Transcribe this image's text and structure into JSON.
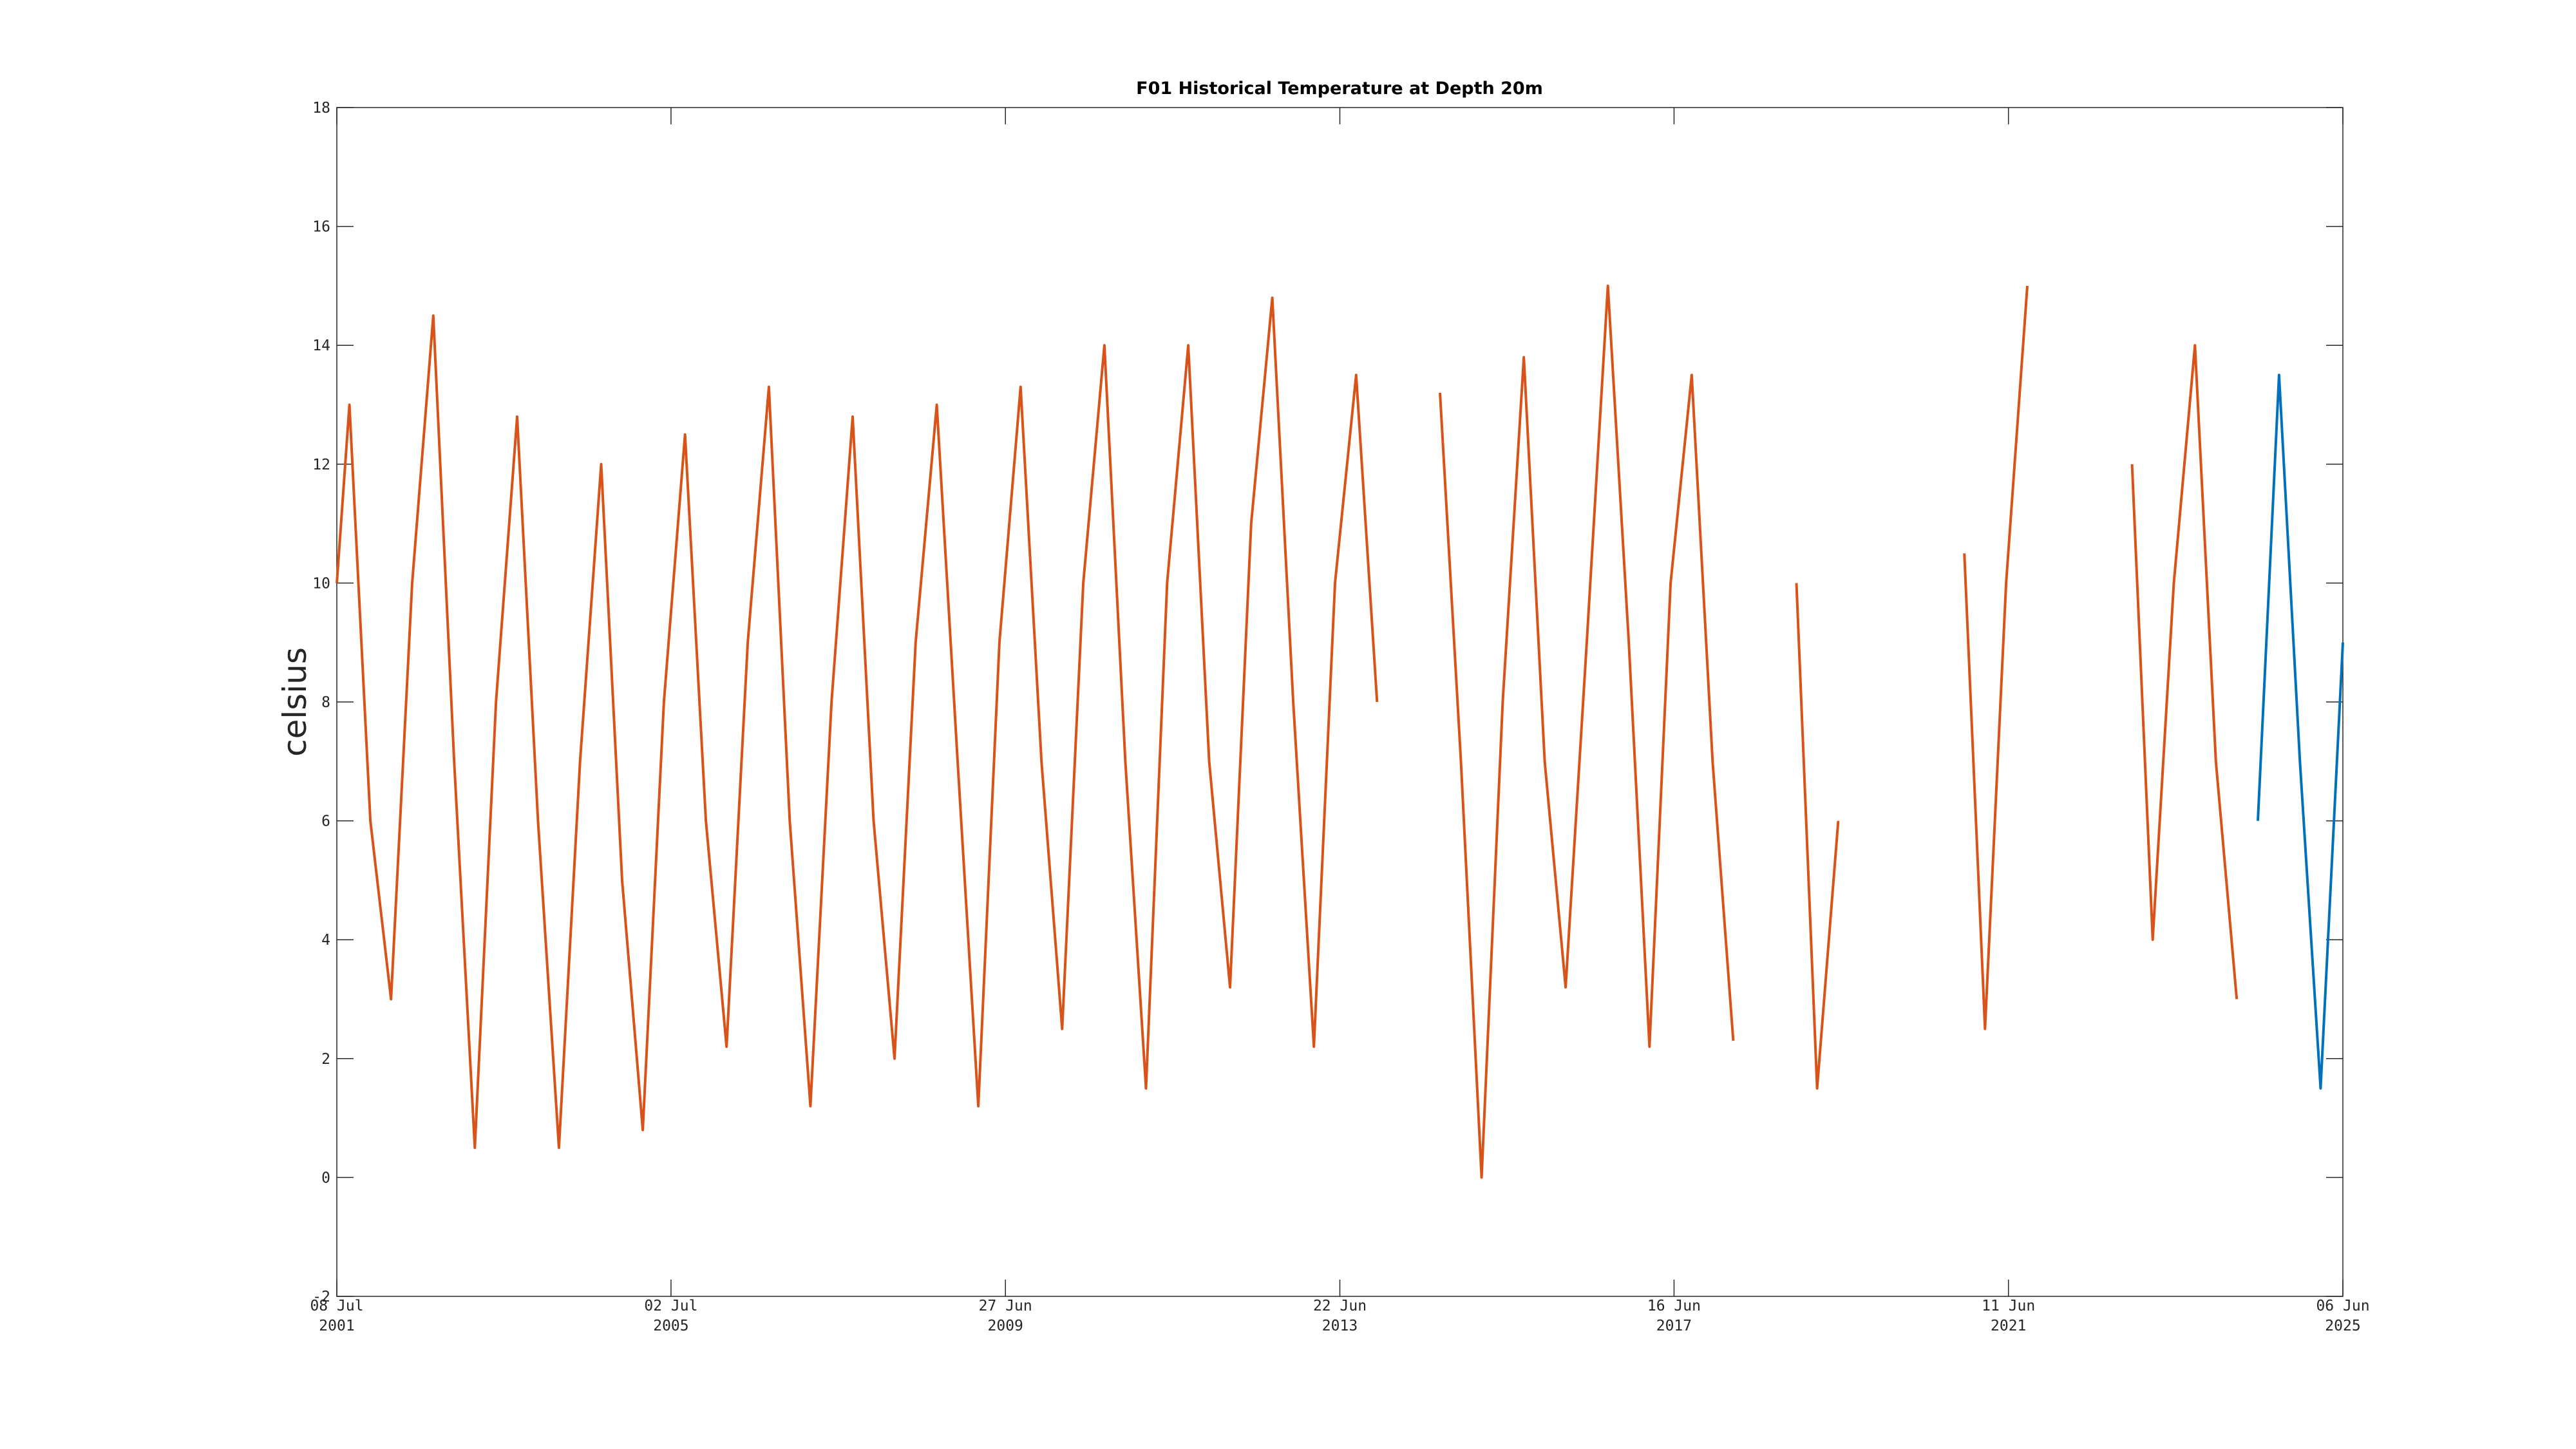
{
  "chart_data": {
    "type": "line",
    "title": "F01 Historical Temperature at Depth 20m",
    "y_label": "celsius",
    "x": [
      "2001-07-08",
      "2001-09-01",
      "2001-12-01",
      "2002-03-01",
      "2002-06-01",
      "2002-09-01",
      "2002-12-01",
      "2003-03-01",
      "2003-06-01",
      "2003-09-01",
      "2003-12-01",
      "2004-03-01",
      "2004-06-01",
      "2004-09-01",
      "2004-12-01",
      "2005-03-01",
      "2005-06-01",
      "2005-09-01",
      "2005-12-01",
      "2006-03-01",
      "2006-06-01",
      "2006-09-01",
      "2006-12-01",
      "2007-03-01",
      "2007-06-01",
      "2007-09-01",
      "2007-12-01",
      "2008-03-01",
      "2008-06-01",
      "2008-09-01",
      "2008-12-01",
      "2009-03-01",
      "2009-06-01",
      "2009-09-01",
      "2009-12-01",
      "2010-03-01",
      "2010-06-01",
      "2010-09-01",
      "2010-12-01",
      "2011-03-01",
      "2011-06-01",
      "2011-09-01",
      "2011-12-01",
      "2012-03-01",
      "2012-06-01",
      "2012-09-01",
      "2012-12-01",
      "2013-03-01",
      "2013-06-01",
      "2013-09-01",
      "2013-12-01",
      "2014-03-01",
      "2014-06-01",
      "2014-09-01",
      "2014-12-01",
      "2015-03-01",
      "2015-06-01",
      "2015-09-01",
      "2015-12-01",
      "2016-03-01",
      "2016-06-01",
      "2016-09-01",
      "2016-12-01",
      "2017-03-01",
      "2017-06-01",
      "2017-09-01",
      "2017-12-01",
      "2018-03-01",
      "2018-06-01",
      "2018-09-01",
      "2018-12-01",
      "2019-03-01",
      "2019-06-01",
      "2019-09-01",
      "2019-12-01",
      "2020-03-01",
      "2020-06-01",
      "2020-09-01",
      "2020-12-01",
      "2021-03-01",
      "2021-06-01",
      "2021-09-01",
      "2021-12-01",
      "2022-03-01",
      "2022-06-01",
      "2022-09-01",
      "2022-12-01",
      "2023-03-01",
      "2023-06-01",
      "2023-09-01",
      "2023-12-01",
      "2024-03-01",
      "2024-06-01",
      "2024-09-01",
      "2024-12-01",
      "2025-03-01",
      "2025-06-06"
    ],
    "series": [
      {
        "color": "#d95319",
        "values": [
          10,
          13,
          6,
          3,
          10,
          14.5,
          7,
          0.5,
          8,
          12.8,
          6,
          0.5,
          7,
          12,
          5,
          0.8,
          8,
          12.5,
          6,
          2.2,
          9,
          13.3,
          6,
          1.2,
          8,
          12.8,
          6,
          2,
          9,
          13,
          7,
          1.2,
          9,
          13.3,
          7,
          2.5,
          10,
          14,
          7,
          1.5,
          10,
          14,
          7,
          3.2,
          11,
          14.8,
          8,
          2.2,
          10,
          13.5,
          8,
          null,
          null,
          13.2,
          7,
          0,
          8,
          13.8,
          7,
          3.2,
          9,
          15,
          9,
          2.2,
          10,
          13.5,
          7,
          2.3,
          null,
          null,
          10,
          1.5,
          6,
          null,
          null,
          null,
          null,
          null,
          10.5,
          2.5,
          10,
          15,
          null,
          null,
          null,
          null,
          12,
          4,
          10,
          14,
          7,
          3,
          null,
          null,
          null,
          null,
          null
        ]
      },
      {
        "color": "#0072bd",
        "values": [
          null,
          null,
          null,
          null,
          null,
          null,
          null,
          null,
          null,
          null,
          null,
          null,
          null,
          null,
          null,
          null,
          null,
          null,
          null,
          null,
          null,
          null,
          null,
          null,
          null,
          null,
          null,
          null,
          null,
          null,
          null,
          null,
          null,
          null,
          null,
          null,
          null,
          null,
          null,
          null,
          null,
          null,
          null,
          null,
          null,
          null,
          null,
          null,
          null,
          null,
          null,
          null,
          null,
          null,
          null,
          null,
          null,
          null,
          null,
          null,
          null,
          null,
          null,
          null,
          null,
          null,
          null,
          null,
          null,
          null,
          null,
          null,
          null,
          null,
          null,
          null,
          null,
          null,
          null,
          null,
          null,
          null,
          null,
          null,
          null,
          null,
          null,
          null,
          null,
          null,
          null,
          null,
          6,
          13.5,
          7,
          1.5,
          9
        ]
      }
    ],
    "xlim": [
      "2001-07-08",
      "2025-06-06"
    ],
    "xticks": [
      {
        "value": "2001-07-08",
        "label": [
          "08 Jul",
          "2001"
        ]
      },
      {
        "value": "2005-07-02",
        "label": [
          "02 Jul",
          "2005"
        ]
      },
      {
        "value": "2009-06-27",
        "label": [
          "27 Jun",
          "2009"
        ]
      },
      {
        "value": "2013-06-22",
        "label": [
          "22 Jun",
          "2013"
        ]
      },
      {
        "value": "2017-06-16",
        "label": [
          "16 Jun",
          "2017"
        ]
      },
      {
        "value": "2021-06-11",
        "label": [
          "11 Jun",
          "2021"
        ]
      },
      {
        "value": "2025-06-06",
        "label": [
          "06 Jun",
          "2025"
        ]
      }
    ],
    "ylim": [
      -2,
      18
    ],
    "yticks": [
      -2,
      0,
      2,
      4,
      6,
      8,
      10,
      12,
      14,
      16,
      18
    ],
    "grid": false
  }
}
